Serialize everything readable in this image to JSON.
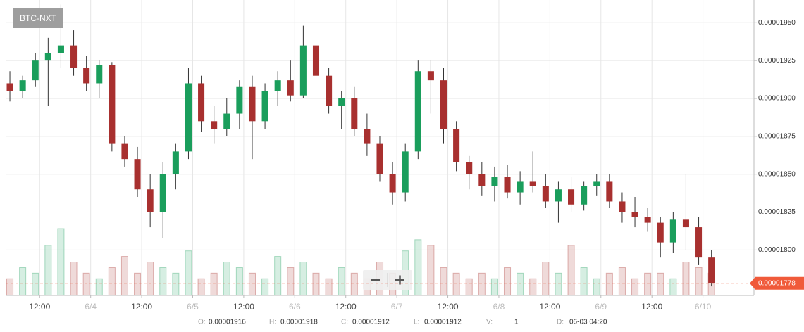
{
  "chart_data": {
    "type": "candlestick",
    "title": "BTC-NXT",
    "x": [
      5,
      8,
      11,
      14,
      17,
      20,
      23,
      26,
      29,
      32,
      35,
      38,
      41,
      44,
      47,
      50,
      53,
      56,
      59,
      62,
      65,
      68,
      71,
      74,
      77,
      80,
      83,
      86,
      89,
      92,
      95,
      98,
      101,
      104,
      107,
      110,
      113,
      116,
      119,
      122,
      125,
      128,
      131,
      134,
      137,
      140,
      143,
      146,
      149,
      152,
      155,
      158,
      161,
      164,
      167,
      170
    ],
    "open": [
      1.91e-05,
      1.905e-05,
      1.912e-05,
      1.925e-05,
      1.93e-05,
      1.935e-05,
      1.92e-05,
      1.91e-05,
      1.922e-05,
      1.87e-05,
      1.86e-05,
      1.84e-05,
      1.825e-05,
      1.85e-05,
      1.865e-05,
      1.91e-05,
      1.885e-05,
      1.88e-05,
      1.89e-05,
      1.908e-05,
      1.885e-05,
      1.905e-05,
      1.912e-05,
      1.902e-05,
      1.935e-05,
      1.915e-05,
      1.895e-05,
      1.9e-05,
      1.88e-05,
      1.87e-05,
      1.85e-05,
      1.838e-05,
      1.865e-05,
      1.918e-05,
      1.912e-05,
      1.88e-05,
      1.858e-05,
      1.85e-05,
      1.842e-05,
      1.848e-05,
      1.838e-05,
      1.845e-05,
      1.842e-05,
      1.832e-05,
      1.84e-05,
      1.83e-05,
      1.842e-05,
      1.845e-05,
      1.832e-05,
      1.825e-05,
      1.822e-05,
      1.818e-05,
      1.805e-05,
      1.82e-05,
      1.815e-05,
      1.795e-05
    ],
    "high": [
      1.918e-05,
      1.915e-05,
      1.93e-05,
      1.94e-05,
      1.962e-05,
      1.945e-05,
      1.928e-05,
      1.925e-05,
      1.924e-05,
      1.875e-05,
      1.868e-05,
      1.85e-05,
      1.858e-05,
      1.87e-05,
      1.92e-05,
      1.915e-05,
      1.895e-05,
      1.9e-05,
      1.912e-05,
      1.915e-05,
      1.91e-05,
      1.918e-05,
      1.925e-05,
      1.948e-05,
      1.94e-05,
      1.92e-05,
      1.905e-05,
      1.908e-05,
      1.89e-05,
      1.875e-05,
      1.858e-05,
      1.87e-05,
      1.925e-05,
      1.925e-05,
      1.92e-05,
      1.885e-05,
      1.862e-05,
      1.858e-05,
      1.855e-05,
      1.856e-05,
      1.852e-05,
      1.865e-05,
      1.85e-05,
      1.845e-05,
      1.848e-05,
      1.845e-05,
      1.85e-05,
      1.85e-05,
      1.838e-05,
      1.835e-05,
      1.828e-05,
      1.822e-05,
      1.825e-05,
      1.85e-05,
      1.822e-05,
      1.8e-05
    ],
    "low": [
      1.898e-05,
      1.9e-05,
      1.908e-05,
      1.895e-05,
      1.92e-05,
      1.915e-05,
      1.905e-05,
      1.9e-05,
      1.865e-05,
      1.855e-05,
      1.835e-05,
      1.815e-05,
      1.808e-05,
      1.84e-05,
      1.86e-05,
      1.878e-05,
      1.87e-05,
      1.875e-05,
      1.88e-05,
      1.86e-05,
      1.88e-05,
      1.895e-05,
      1.898e-05,
      1.9e-05,
      1.905e-05,
      1.89e-05,
      1.88e-05,
      1.875e-05,
      1.862e-05,
      1.845e-05,
      1.83e-05,
      1.832e-05,
      1.86e-05,
      1.89e-05,
      1.87e-05,
      1.852e-05,
      1.84e-05,
      1.836e-05,
      1.832e-05,
      1.834e-05,
      1.83e-05,
      1.838e-05,
      1.828e-05,
      1.818e-05,
      1.825e-05,
      1.826e-05,
      1.836e-05,
      1.828e-05,
      1.818e-05,
      1.815e-05,
      1.812e-05,
      1.795e-05,
      1.798e-05,
      1.8e-05,
      1.79e-05,
      1.776e-05
    ],
    "close": [
      1.905e-05,
      1.912e-05,
      1.925e-05,
      1.93e-05,
      1.935e-05,
      1.92e-05,
      1.91e-05,
      1.922e-05,
      1.87e-05,
      1.86e-05,
      1.84e-05,
      1.825e-05,
      1.85e-05,
      1.865e-05,
      1.91e-05,
      1.885e-05,
      1.88e-05,
      1.89e-05,
      1.908e-05,
      1.885e-05,
      1.905e-05,
      1.912e-05,
      1.902e-05,
      1.935e-05,
      1.915e-05,
      1.895e-05,
      1.9e-05,
      1.88e-05,
      1.87e-05,
      1.85e-05,
      1.838e-05,
      1.865e-05,
      1.918e-05,
      1.912e-05,
      1.88e-05,
      1.858e-05,
      1.85e-05,
      1.842e-05,
      1.848e-05,
      1.838e-05,
      1.845e-05,
      1.842e-05,
      1.832e-05,
      1.84e-05,
      1.83e-05,
      1.842e-05,
      1.845e-05,
      1.832e-05,
      1.825e-05,
      1.822e-05,
      1.818e-05,
      1.805e-05,
      1.82e-05,
      1.815e-05,
      1.795e-05,
      1.778e-05
    ],
    "volume": [
      3,
      5,
      4,
      9,
      12,
      6,
      4,
      3,
      5,
      7,
      4,
      6,
      5,
      4,
      8,
      3,
      4,
      6,
      5,
      4,
      3,
      7,
      5,
      6,
      4,
      3,
      5,
      4,
      3,
      6,
      4,
      8,
      10,
      9,
      5,
      4,
      3,
      4,
      3,
      5,
      4,
      3,
      6,
      4,
      9,
      5,
      3,
      4,
      5,
      3,
      4,
      4,
      3,
      6,
      5,
      4
    ],
    "up_color": "#1a9e5c",
    "down_color": "#a8302f",
    "xlim": [
      4,
      180
    ],
    "xticks": [
      {
        "value": 12,
        "label": "12:00"
      },
      {
        "value": 24,
        "label": "6/4"
      },
      {
        "value": 36,
        "label": "12:00"
      },
      {
        "value": 48,
        "label": "6/5"
      },
      {
        "value": 60,
        "label": "12:00"
      },
      {
        "value": 72,
        "label": "6/6"
      },
      {
        "value": 84,
        "label": "12:00"
      },
      {
        "value": 96,
        "label": "6/7"
      },
      {
        "value": 108,
        "label": "12:00"
      },
      {
        "value": 120,
        "label": "6/8"
      },
      {
        "value": 132,
        "label": "12:00"
      },
      {
        "value": 144,
        "label": "6/9"
      },
      {
        "value": 156,
        "label": "12:00"
      },
      {
        "value": 168,
        "label": "6/10"
      }
    ],
    "ylim": [
      1.77e-05,
      1.965e-05
    ],
    "yticks": [
      {
        "value": 1.8e-05,
        "label": "0.00001800"
      },
      {
        "value": 1.825e-05,
        "label": "0.00001825"
      },
      {
        "value": 1.85e-05,
        "label": "0.00001850"
      },
      {
        "value": 1.875e-05,
        "label": "0.00001875"
      },
      {
        "value": 1.9e-05,
        "label": "0.00001900"
      },
      {
        "value": 1.925e-05,
        "label": "0.00001925"
      },
      {
        "value": 1.95e-05,
        "label": "0.00001950"
      }
    ],
    "grid": true,
    "last_price": {
      "value": 1.778e-05,
      "label": "0.00001778"
    }
  },
  "info": [
    {
      "label": "O:",
      "value": "0.00001916"
    },
    {
      "label": "H:",
      "value": "0.00001918"
    },
    {
      "label": "C:",
      "value": "0.00001912"
    },
    {
      "label": "L:",
      "value": "0.00001912"
    },
    {
      "label": "V:",
      "value": "1"
    },
    {
      "label": "D:",
      "value": "06-03 04:20"
    }
  ]
}
